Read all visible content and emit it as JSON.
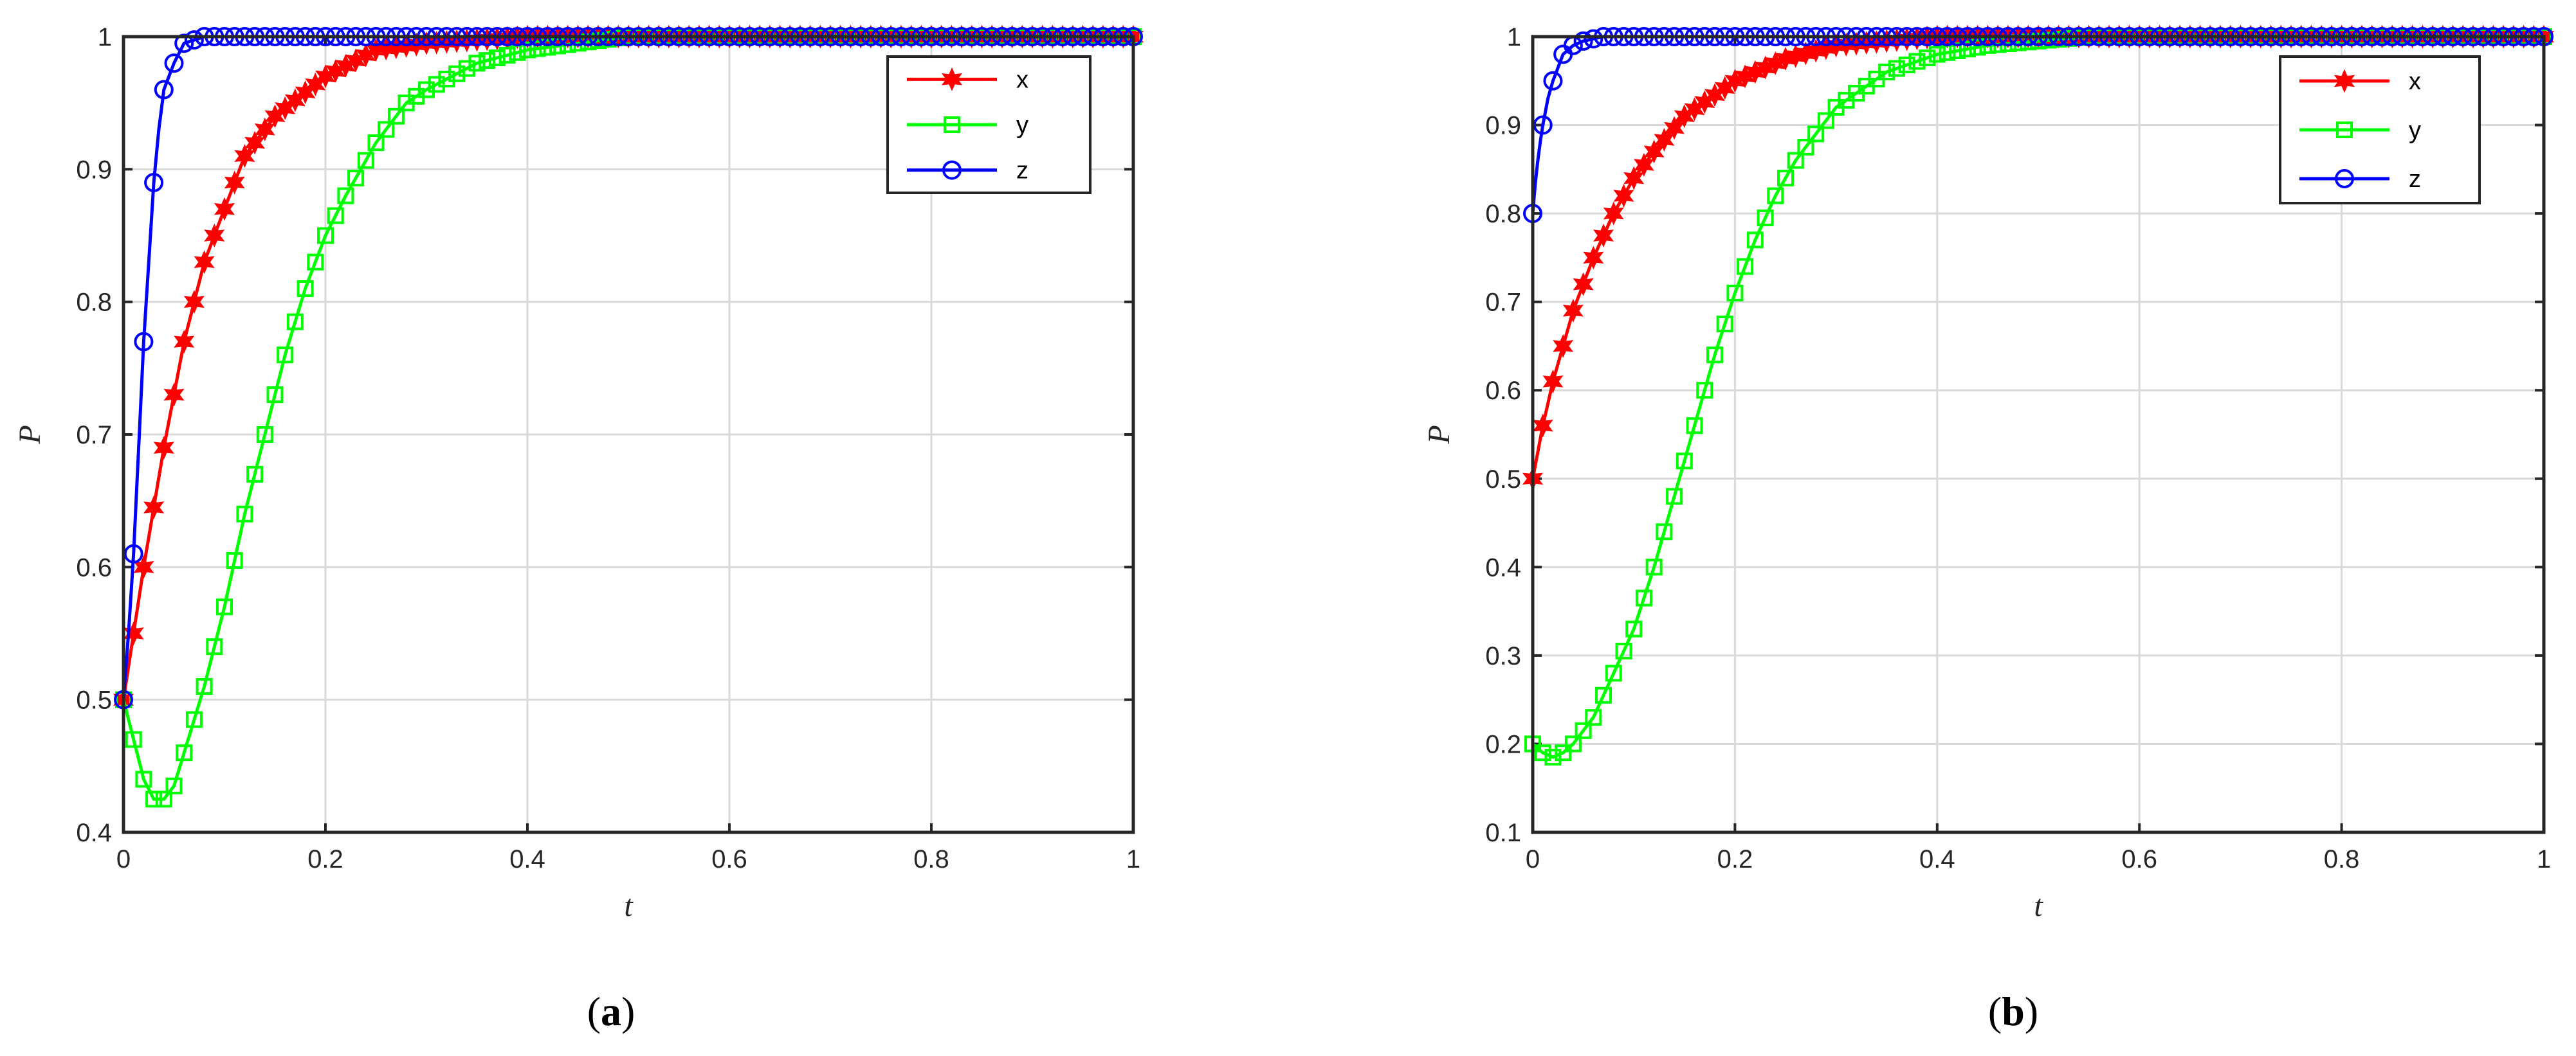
{
  "chart_data": [
    {
      "type": "line",
      "panel_label": "a",
      "xlabel": "t",
      "ylabel": "P",
      "xlim": [
        0,
        1
      ],
      "ylim": [
        0.4,
        1
      ],
      "xticks": [
        "0",
        "0.2",
        "0.4",
        "0.6",
        "0.8",
        "1"
      ],
      "yticks": [
        "0.4",
        "0.5",
        "0.6",
        "0.7",
        "0.8",
        "0.9",
        "1"
      ],
      "grid": true,
      "legend_position": "top-right",
      "series": [
        {
          "name": "x",
          "color": "#ff0000",
          "marker": "star",
          "x": [
            0,
            0.02,
            0.04,
            0.06,
            0.08,
            0.1,
            0.12,
            0.15,
            0.2,
            0.25,
            0.3,
            0.4,
            0.5,
            0.6,
            0.8,
            1.0
          ],
          "y": [
            0.5,
            0.6,
            0.69,
            0.77,
            0.83,
            0.87,
            0.91,
            0.94,
            0.97,
            0.99,
            0.995,
            1.0,
            1.0,
            1.0,
            1.0,
            1.0
          ]
        },
        {
          "name": "y",
          "color": "#00ff00",
          "marker": "square",
          "x": [
            0,
            0.01,
            0.02,
            0.03,
            0.04,
            0.05,
            0.06,
            0.08,
            0.1,
            0.12,
            0.14,
            0.16,
            0.18,
            0.2,
            0.22,
            0.25,
            0.28,
            0.3,
            0.35,
            0.4,
            0.45,
            0.5,
            0.55,
            0.6,
            0.8,
            1.0
          ],
          "y": [
            0.5,
            0.47,
            0.44,
            0.425,
            0.425,
            0.435,
            0.46,
            0.51,
            0.57,
            0.64,
            0.7,
            0.76,
            0.81,
            0.85,
            0.88,
            0.92,
            0.95,
            0.96,
            0.98,
            0.99,
            0.995,
            1.0,
            1.0,
            1.0,
            1.0,
            1.0
          ]
        },
        {
          "name": "z",
          "color": "#0000ff",
          "marker": "circle",
          "x": [
            0,
            0.005,
            0.01,
            0.015,
            0.02,
            0.025,
            0.03,
            0.035,
            0.04,
            0.05,
            0.06,
            0.08,
            0.1,
            0.2,
            0.4,
            0.6,
            0.8,
            1.0
          ],
          "y": [
            0.5,
            0.55,
            0.61,
            0.69,
            0.77,
            0.83,
            0.89,
            0.93,
            0.96,
            0.98,
            0.995,
            1.0,
            1.0,
            1.0,
            1.0,
            1.0,
            1.0,
            1.0
          ]
        }
      ]
    },
    {
      "type": "line",
      "panel_label": "b",
      "xlabel": "t",
      "ylabel": "P",
      "xlim": [
        0,
        1
      ],
      "ylim": [
        0.1,
        1
      ],
      "xticks": [
        "0",
        "0.2",
        "0.4",
        "0.6",
        "0.8",
        "1"
      ],
      "yticks": [
        "0.1",
        "0.2",
        "0.3",
        "0.4",
        "0.5",
        "0.6",
        "0.7",
        "0.8",
        "0.9",
        "1"
      ],
      "grid": true,
      "legend_position": "top-right",
      "series": [
        {
          "name": "x",
          "color": "#ff0000",
          "marker": "star",
          "x": [
            0,
            0.01,
            0.02,
            0.03,
            0.04,
            0.06,
            0.08,
            0.1,
            0.12,
            0.15,
            0.2,
            0.25,
            0.3,
            0.4,
            0.5,
            0.6,
            0.8,
            1.0
          ],
          "y": [
            0.5,
            0.56,
            0.61,
            0.65,
            0.69,
            0.75,
            0.8,
            0.84,
            0.87,
            0.91,
            0.95,
            0.975,
            0.99,
            1.0,
            1.0,
            1.0,
            1.0,
            1.0
          ]
        },
        {
          "name": "y",
          "color": "#00ff00",
          "marker": "square",
          "x": [
            0,
            0.01,
            0.02,
            0.03,
            0.04,
            0.06,
            0.08,
            0.1,
            0.12,
            0.14,
            0.16,
            0.18,
            0.2,
            0.22,
            0.24,
            0.26,
            0.28,
            0.3,
            0.35,
            0.4,
            0.45,
            0.5,
            0.55,
            0.6,
            0.8,
            1.0
          ],
          "y": [
            0.2,
            0.19,
            0.185,
            0.19,
            0.2,
            0.23,
            0.28,
            0.33,
            0.4,
            0.48,
            0.56,
            0.64,
            0.71,
            0.77,
            0.82,
            0.86,
            0.89,
            0.92,
            0.96,
            0.98,
            0.99,
            0.995,
            1.0,
            1.0,
            1.0,
            1.0
          ]
        },
        {
          "name": "z",
          "color": "#0000ff",
          "marker": "circle",
          "x": [
            0,
            0.003,
            0.006,
            0.01,
            0.015,
            0.02,
            0.025,
            0.03,
            0.04,
            0.05,
            0.07,
            0.1,
            0.2,
            0.4,
            0.6,
            0.8,
            1.0
          ],
          "y": [
            0.8,
            0.84,
            0.87,
            0.9,
            0.93,
            0.95,
            0.965,
            0.98,
            0.99,
            0.995,
            1.0,
            1.0,
            1.0,
            1.0,
            1.0,
            1.0,
            1.0
          ]
        }
      ]
    }
  ]
}
